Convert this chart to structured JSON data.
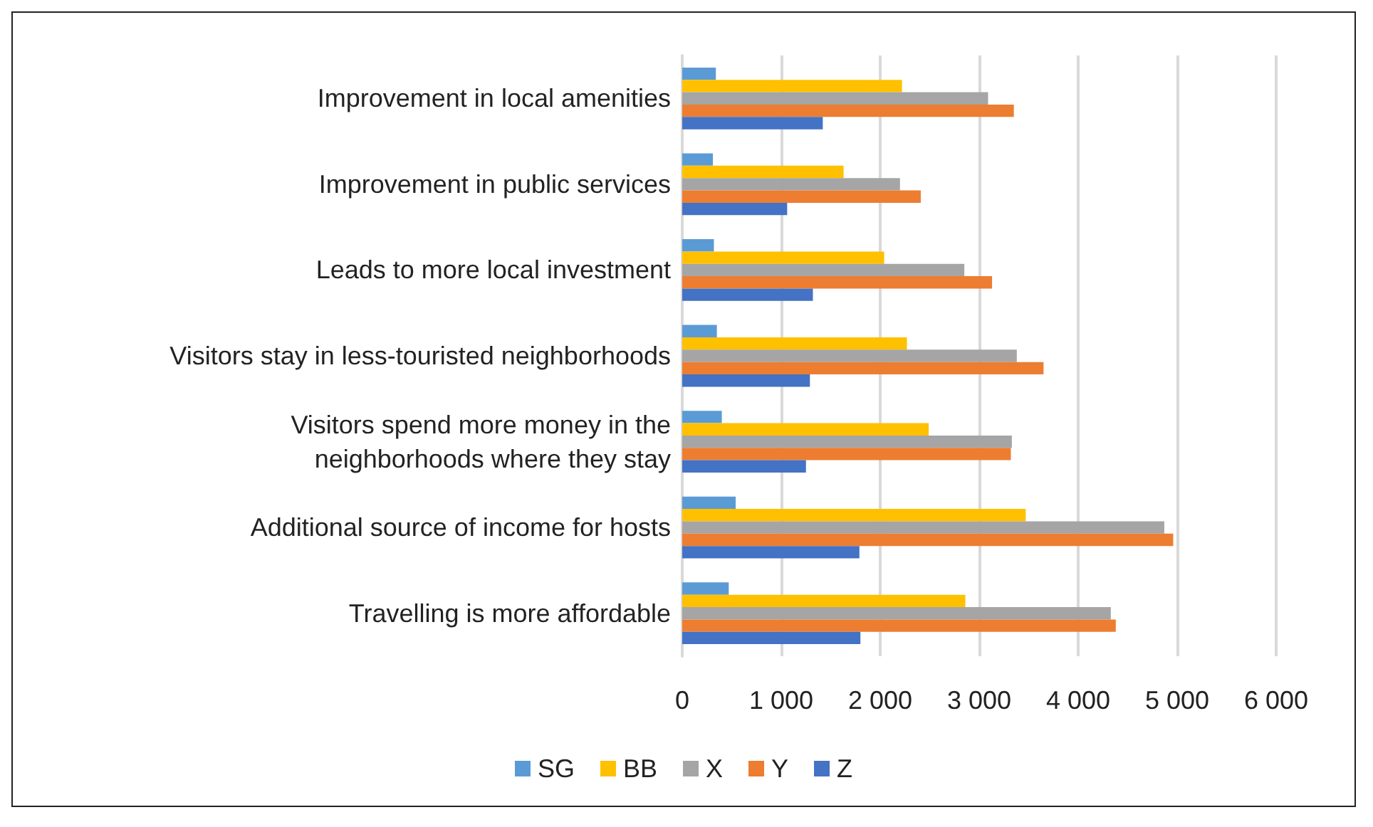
{
  "chart_data": {
    "type": "bar",
    "orientation": "horizontal",
    "categories": [
      "Improvement in local amenities",
      "Improvement in public services",
      "Leads to more local investment",
      "Visitors stay in less-touristed neighborhoods",
      "Visitors spend more money in the\nneighborhoods where they stay",
      "Additional source of income for hosts",
      "Travelling is more affordable"
    ],
    "series": [
      {
        "name": "SG",
        "color": "#5b9bd5",
        "values": [
          340,
          310,
          320,
          350,
          400,
          540,
          470
        ]
      },
      {
        "name": "BB",
        "color": "#ffc000",
        "values": [
          2220,
          1630,
          2040,
          2270,
          2490,
          3470,
          2860
        ]
      },
      {
        "name": "X",
        "color": "#a5a5a5",
        "values": [
          3090,
          2200,
          2850,
          3380,
          3330,
          4870,
          4330
        ]
      },
      {
        "name": "Y",
        "color": "#ed7d31",
        "values": [
          3350,
          2410,
          3130,
          3650,
          3320,
          4960,
          4380
        ]
      },
      {
        "name": "Z",
        "color": "#4472c4",
        "values": [
          1420,
          1060,
          1320,
          1290,
          1250,
          1790,
          1800
        ]
      }
    ],
    "xlim": [
      0,
      6000
    ],
    "xticks": [
      0,
      {
        "value": 1000,
        "label": "1 000"
      },
      {
        "value": 2000,
        "label": "2 000"
      },
      {
        "value": 3000,
        "label": "3 000"
      },
      {
        "value": 4000,
        "label": "4 000"
      },
      {
        "value": 5000,
        "label": "5 000"
      },
      {
        "value": 6000,
        "label": "6 000"
      }
    ],
    "grid": "x",
    "legend": "bottom"
  }
}
